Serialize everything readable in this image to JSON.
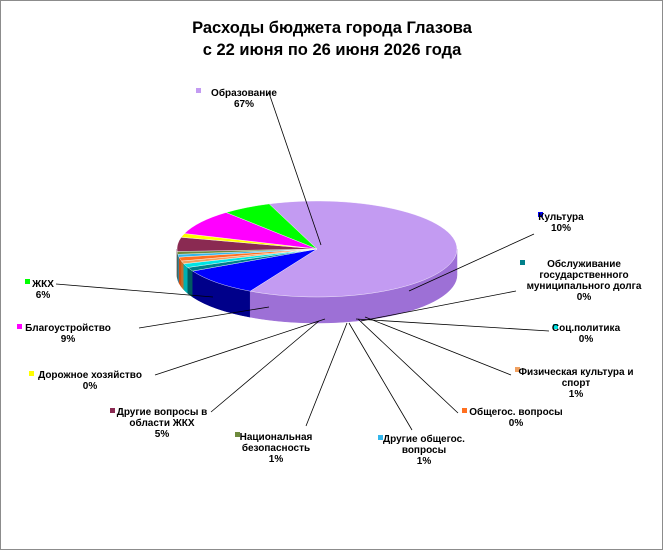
{
  "chart_data": {
    "type": "pie",
    "title_lines": [
      "Расходы бюджета города Глазова",
      "с 22 июня по 26 июня 2026 года"
    ],
    "slices": [
      {
        "name": "Образование",
        "label_lines": [
          "Образование"
        ],
        "percent_label": "67%",
        "value": 67,
        "color": "#c39bf2",
        "side": "#9d70d6"
      },
      {
        "name": "Культура",
        "label_lines": [
          "Культура"
        ],
        "percent_label": "10%",
        "value": 10,
        "color": "#0000ff",
        "side": "#00008a"
      },
      {
        "name": "Обслуживание государственного муниципального долга",
        "label_lines": [
          "Обслуживание",
          "государственного",
          "муниципального  долга"
        ],
        "percent_label": "0%",
        "value": 0,
        "color": "#00808a",
        "side": "#005a60"
      },
      {
        "name": "Соц.политика",
        "label_lines": [
          "Соц.политика"
        ],
        "percent_label": "0%",
        "value": 0,
        "color": "#00e5e5",
        "side": "#00b0b0"
      },
      {
        "name": "Физическая культура и спорт",
        "label_lines": [
          "Физическая культура и",
          "спорт"
        ],
        "percent_label": "1%",
        "value": 1,
        "color": "#f0a060",
        "side": "#c0702e"
      },
      {
        "name": "Общегос. вопросы",
        "label_lines": [
          "Общегос. вопросы"
        ],
        "percent_label": "0%",
        "value": 0,
        "color": "#ff7020",
        "side": "#cc5010"
      },
      {
        "name": "Другие общегос. вопросы",
        "label_lines": [
          "Другие общегос.",
          "вопросы"
        ],
        "percent_label": "1%",
        "value": 1,
        "color": "#33b6ec",
        "side": "#1a86b8"
      },
      {
        "name": "Национальная безопасность",
        "label_lines": [
          "Национальная",
          "безопасность"
        ],
        "percent_label": "1%",
        "value": 1,
        "color": "#6e8a3c",
        "side": "#4a6024"
      },
      {
        "name": "Другие вопросы в области ЖКХ",
        "label_lines": [
          "Другие вопросы в",
          "области ЖКХ"
        ],
        "percent_label": "5%",
        "value": 5,
        "color": "#8a2a52",
        "side": "#601a38"
      },
      {
        "name": "Дорожное хозяйство",
        "label_lines": [
          "Дорожное хозяйство"
        ],
        "percent_label": "0%",
        "value": 0,
        "color": "#ffff00",
        "side": "#c8c800"
      },
      {
        "name": "Благоустройство",
        "label_lines": [
          "Благоустройство"
        ],
        "percent_label": "9%",
        "value": 9,
        "color": "#ff00ff",
        "side": "#cc00cc"
      },
      {
        "name": "ЖКХ",
        "label_lines": [
          "ЖКХ"
        ],
        "percent_label": "6%",
        "value": 6,
        "color": "#00ff00",
        "side": "#00c000"
      }
    ],
    "legend": "leader-line labels around the pie",
    "style": "3d-pie"
  }
}
